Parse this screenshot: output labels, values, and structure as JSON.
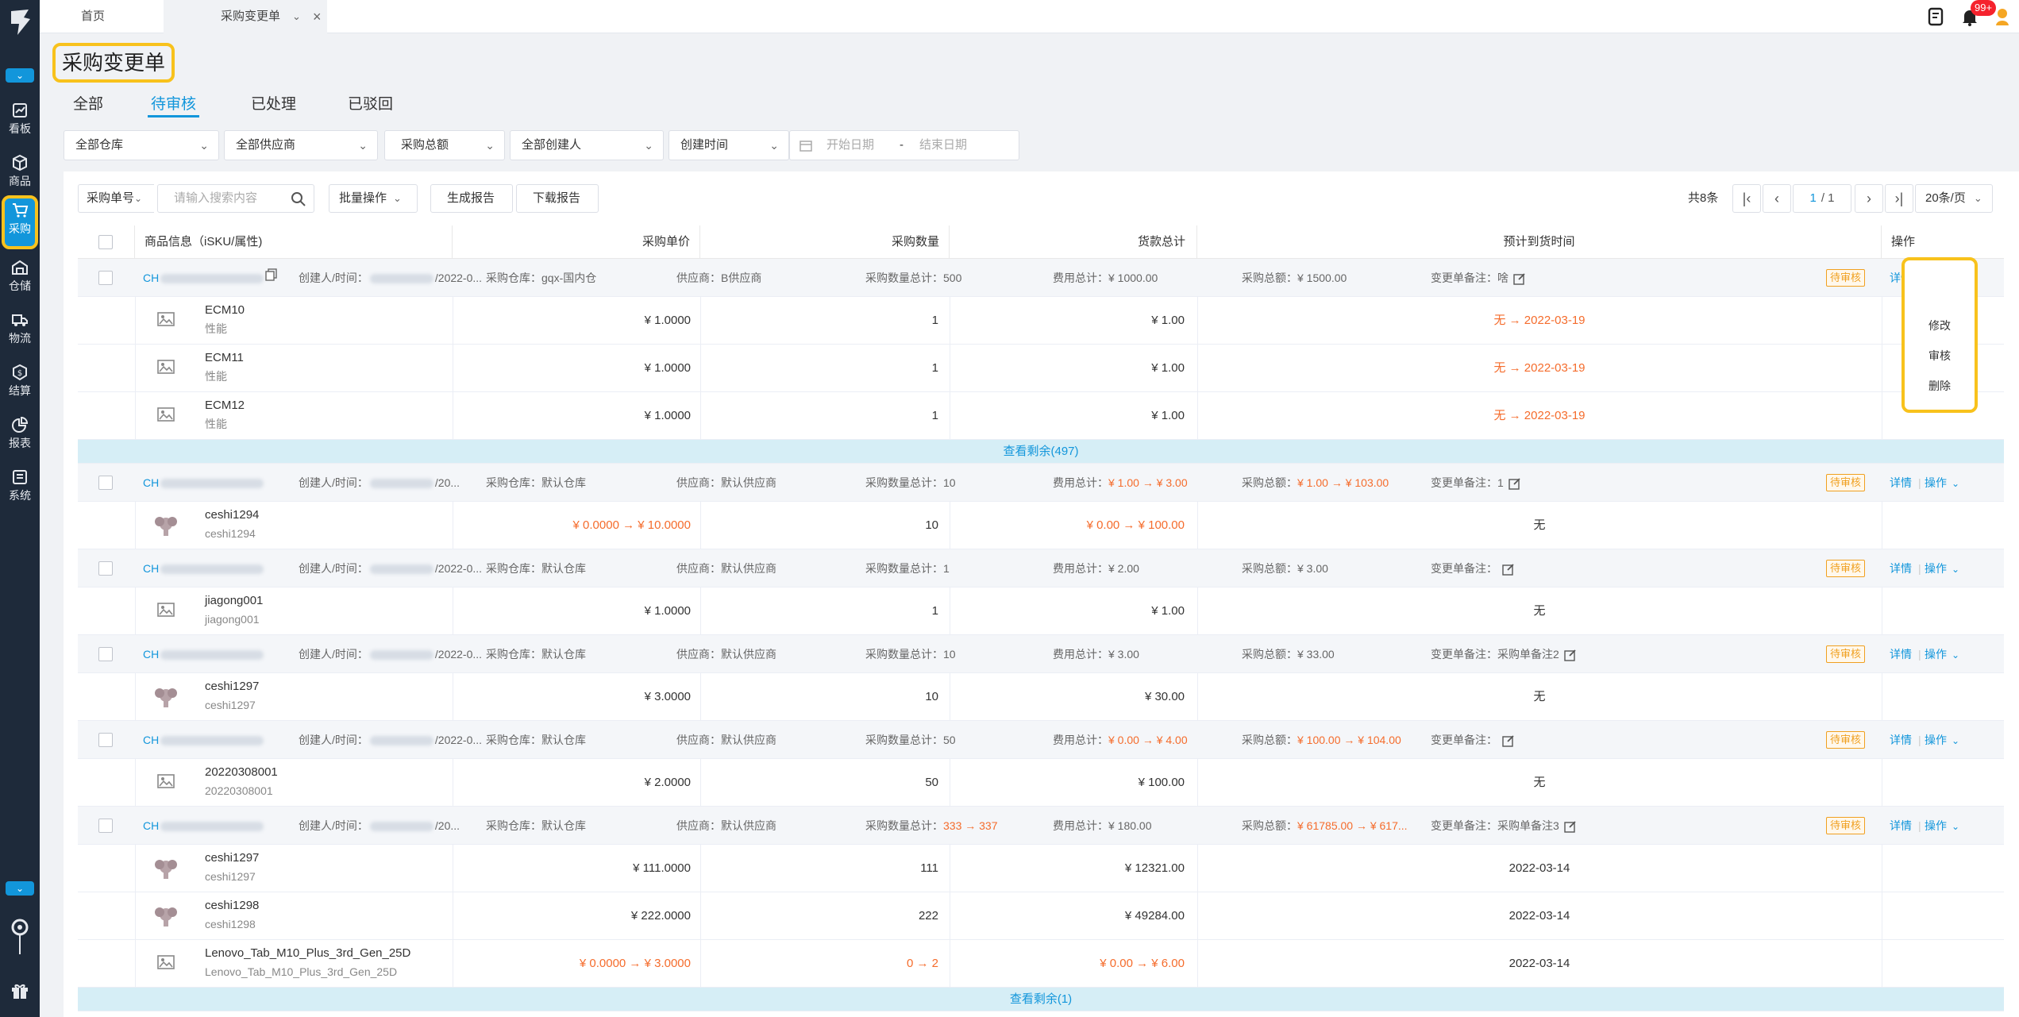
{
  "sidebar": {
    "items": [
      {
        "label": "看板",
        "icon": "dashboard-icon"
      },
      {
        "label": "商品",
        "icon": "box-icon"
      },
      {
        "label": "采购",
        "icon": "cart-icon"
      },
      {
        "label": "仓储",
        "icon": "warehouse-icon"
      },
      {
        "label": "物流",
        "icon": "truck-icon"
      },
      {
        "label": "结算",
        "icon": "coin-icon"
      },
      {
        "label": "报表",
        "icon": "pie-chart-icon"
      },
      {
        "label": "系统",
        "icon": "system-icon"
      }
    ]
  },
  "tabbar": {
    "home_label": "首页",
    "current_label": "采购变更单",
    "notification_count": "99+"
  },
  "page": {
    "title": "采购变更单",
    "status_tabs": [
      "全部",
      "待审核",
      "已处理",
      "已驳回"
    ],
    "active_status_tab": "待审核"
  },
  "filters": {
    "warehouse": "全部仓库",
    "supplier": "全部供应商",
    "total": "采购总额",
    "creator": "全部创建人",
    "time_type": "创建时间",
    "start_date_placeholder": "开始日期",
    "date_separator": "-",
    "end_date_placeholder": "结束日期"
  },
  "toolbar": {
    "search_type": "采购单号",
    "search_placeholder": "请输入搜索内容",
    "batch_label": "批量操作",
    "generate_report": "生成报告",
    "download_report": "下载报告",
    "total_count": "共8条",
    "page_current": "1",
    "page_total": "/ 1",
    "page_size": "20条/页"
  },
  "table": {
    "headers": {
      "product": "商品信息（iSKU/属性)",
      "unit_price": "采购单价",
      "quantity": "采购数量",
      "goods_total": "货款总计",
      "eta": "预计到货时间",
      "actions": "操作"
    },
    "labels": {
      "creator": "创建人/时间：",
      "warehouse": "采购仓库：",
      "supplier": "供应商：",
      "qty_total": "采购数量总计：",
      "fee_total": "费用总计：",
      "amount_total": "采购总额：",
      "remark": "变更单备注：",
      "detail": "详情",
      "operate": "操作",
      "arrow": "→"
    },
    "groups": [
      {
        "order_prefix": "CH",
        "date_part": "/2022-0...",
        "warehouse": "gqx-国内仓",
        "supplier": "B供应商",
        "qty_total": "500",
        "fee_total": "¥ 1000.00",
        "amount_total": "¥ 1500.00",
        "remark": "啥",
        "status": "待审核",
        "items": [
          {
            "name": "ECM10",
            "sub": "性能",
            "price": "¥ 1.0000",
            "qty": "1",
            "goods": "¥ 1.00",
            "eta": "无 → 2022-03-19",
            "eta_changed": true
          },
          {
            "name": "ECM11",
            "sub": "性能",
            "price": "¥ 1.0000",
            "qty": "1",
            "goods": "¥ 1.00",
            "eta": "无 → 2022-03-19",
            "eta_changed": true
          },
          {
            "name": "ECM12",
            "sub": "性能",
            "price": "¥ 1.0000",
            "qty": "1",
            "goods": "¥ 1.00",
            "eta": "无 → 2022-03-19",
            "eta_changed": true
          }
        ],
        "more": "查看剩余(497)"
      },
      {
        "order_prefix": "CH",
        "date_part": "/20...",
        "warehouse": "默认仓库",
        "supplier": "默认供应商",
        "qty_total": "10",
        "fee_total": "¥ 1.00 → ¥ 3.00",
        "amount_total": "¥ 1.00 → ¥ 103.00",
        "remark": "1",
        "status": "待审核",
        "items": [
          {
            "name": "ceshi1294",
            "sub": "ceshi1294",
            "price": "¥ 0.0000 → ¥ 10.0000",
            "qty": "10",
            "goods": "¥ 0.00 → ¥ 100.00",
            "eta": "无"
          }
        ]
      },
      {
        "order_prefix": "CH",
        "date_part": "/2022-0...",
        "warehouse": "默认仓库",
        "supplier": "默认供应商",
        "qty_total": "1",
        "fee_total": "¥ 2.00",
        "amount_total": "¥ 3.00",
        "remark": "",
        "status": "待审核",
        "items": [
          {
            "name": "jiagong001",
            "sub": "jiagong001",
            "price": "¥ 1.0000",
            "qty": "1",
            "goods": "¥ 1.00",
            "eta": "无"
          }
        ]
      },
      {
        "order_prefix": "CH",
        "date_part": "/2022-0...",
        "warehouse": "默认仓库",
        "supplier": "默认供应商",
        "qty_total": "10",
        "fee_total": "¥ 3.00",
        "amount_total": "¥ 33.00",
        "remark": "采购单备注2",
        "status": "待审核",
        "items": [
          {
            "name": "ceshi1297",
            "sub": "ceshi1297",
            "price": "¥ 3.0000",
            "qty": "10",
            "goods": "¥ 30.00",
            "eta": "无"
          }
        ]
      },
      {
        "order_prefix": "CH",
        "date_part": "/2022-0...",
        "warehouse": "默认仓库",
        "supplier": "默认供应商",
        "qty_total": "50",
        "fee_total": "¥ 0.00 → ¥ 4.00",
        "amount_total": "¥ 100.00 → ¥ 104.00",
        "remark": "",
        "status": "待审核",
        "items": [
          {
            "name": "20220308001",
            "sub": "20220308001",
            "price": "¥ 2.0000",
            "qty": "50",
            "goods": "¥ 100.00",
            "eta": "无"
          }
        ]
      },
      {
        "order_prefix": "CH",
        "date_part": "/20...",
        "warehouse": "默认仓库",
        "supplier": "默认供应商",
        "qty_total": "333 → 337",
        "fee_total": "¥ 180.00",
        "amount_total": "¥ 61785.00 → ¥ 617...",
        "remark": "采购单备注3",
        "status": "待审核",
        "items": [
          {
            "name": "ceshi1297",
            "sub": "ceshi1297",
            "price": "¥ 111.0000",
            "qty": "111",
            "goods": "¥ 12321.00",
            "eta": "2022-03-14"
          },
          {
            "name": "ceshi1298",
            "sub": "ceshi1298",
            "price": "¥ 222.0000",
            "qty": "222",
            "goods": "¥ 49284.00",
            "eta": "2022-03-14"
          },
          {
            "name": "Lenovo_Tab_M10_Plus_3rd_Gen_25D",
            "sub": "Lenovo_Tab_M10_Plus_3rd_Gen_25D",
            "price": "¥ 0.0000 → ¥ 3.0000",
            "qty": "0 → 2",
            "goods": "¥ 0.00 → ¥ 6.00",
            "eta": "2022-03-14"
          }
        ],
        "more": "查看剩余(1)"
      }
    ]
  },
  "dropdown": {
    "items": [
      "修改",
      "审核",
      "删除"
    ]
  },
  "colors": {
    "accent": "#1296db",
    "sidebar_bg": "#1e2a3a",
    "highlight": "#f8c21c",
    "changed_value": "#f56c2c",
    "pending_tag": "#f0a020"
  }
}
